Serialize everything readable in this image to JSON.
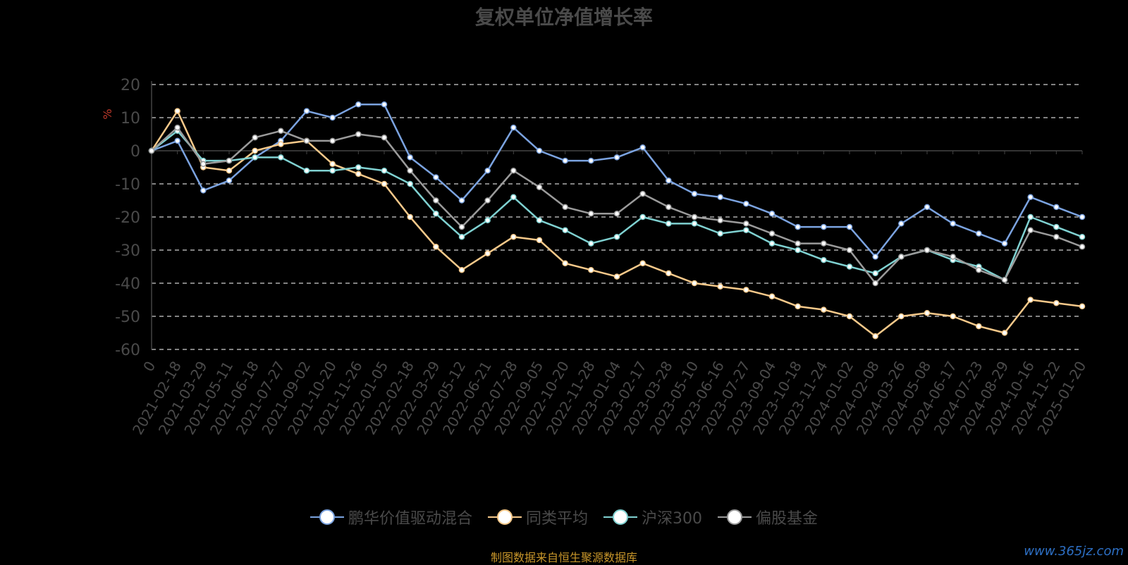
{
  "header": {
    "title": "复权单位净值增长率"
  },
  "footer": {
    "source": "制图数据来自恒生聚源数据库",
    "watermark": "www.365jz.com"
  },
  "chart_data": {
    "type": "line",
    "title": "复权单位净值增长率",
    "ylabel": "%",
    "xlabel": "",
    "ylim": [
      -60,
      20
    ],
    "yticks": [
      20,
      10,
      0,
      -10,
      -20,
      -30,
      -40,
      -50,
      -60
    ],
    "grid": true,
    "legend_position": "bottom",
    "categories": [
      "0",
      "2021-02-18",
      "2021-03-29",
      "2021-05-11",
      "2021-06-18",
      "2021-07-27",
      "2021-09-02",
      "2021-10-20",
      "2021-11-26",
      "2022-01-05",
      "2022-02-18",
      "2022-03-29",
      "2022-05-12",
      "2022-06-21",
      "2022-07-28",
      "2022-09-05",
      "2022-10-20",
      "2022-11-28",
      "2023-01-04",
      "2023-02-17",
      "2023-03-28",
      "2023-05-10",
      "2023-06-16",
      "2023-07-27",
      "2023-09-04",
      "2023-10-18",
      "2023-11-24",
      "2024-01-02",
      "2024-02-08",
      "2024-03-26",
      "2024-05-08",
      "2024-06-17",
      "2024-07-23",
      "2024-08-29",
      "2024-10-16",
      "2024-11-22",
      "2025-01-20"
    ],
    "series": [
      {
        "name": "鹏华价值驱动混合",
        "color": "#7ba3e0",
        "values": [
          0,
          3,
          -12,
          -9,
          -2,
          3,
          12,
          10,
          14,
          14,
          -2,
          -8,
          -15,
          -6,
          7,
          0,
          -3,
          -3,
          -2,
          1,
          -9,
          -13,
          -14,
          -16,
          -19,
          -23,
          -23,
          -23,
          -32,
          -22,
          -17,
          -22,
          -25,
          -28,
          -14,
          -17,
          -20
        ]
      },
      {
        "name": "同类平均",
        "color": "#f7c98a",
        "values": [
          0,
          12,
          -5,
          -6,
          0,
          2,
          3,
          -4,
          -7,
          -10,
          -20,
          -29,
          -36,
          -31,
          -26,
          -27,
          -34,
          -36,
          -38,
          -34,
          -37,
          -40,
          -41,
          -42,
          -44,
          -47,
          -48,
          -50,
          -56,
          -50,
          -49,
          -50,
          -53,
          -55,
          -45,
          -46,
          -47
        ]
      },
      {
        "name": "沪深300",
        "color": "#7fd1d1",
        "values": [
          0,
          6,
          -3,
          -3,
          -2,
          -2,
          -6,
          -6,
          -5,
          -6,
          -10,
          -19,
          -26,
          -21,
          -14,
          -21,
          -24,
          -28,
          -26,
          -20,
          -22,
          -22,
          -25,
          -24,
          -28,
          -30,
          -33,
          -35,
          -37,
          -32,
          -30,
          -33,
          -35,
          -39,
          -20,
          -23,
          -26
        ]
      },
      {
        "name": "偏股基金",
        "color": "#9b9b9b",
        "values": [
          0,
          7,
          -4,
          -3,
          4,
          6,
          3,
          3,
          5,
          4,
          -6,
          -15,
          -23,
          -15,
          -6,
          -11,
          -17,
          -19,
          -19,
          -13,
          -17,
          -20,
          -21,
          -22,
          -25,
          -28,
          -28,
          -30,
          -40,
          -32,
          -30,
          -32,
          -36,
          -39,
          -24,
          -26,
          -29
        ]
      }
    ]
  },
  "legend": {
    "items": [
      {
        "label": "鹏华价值驱动混合",
        "color": "#7ba3e0"
      },
      {
        "label": "同类平均",
        "color": "#f7c98a"
      },
      {
        "label": "沪深300",
        "color": "#7fd1d1"
      },
      {
        "label": "偏股基金",
        "color": "#9b9b9b"
      }
    ]
  }
}
